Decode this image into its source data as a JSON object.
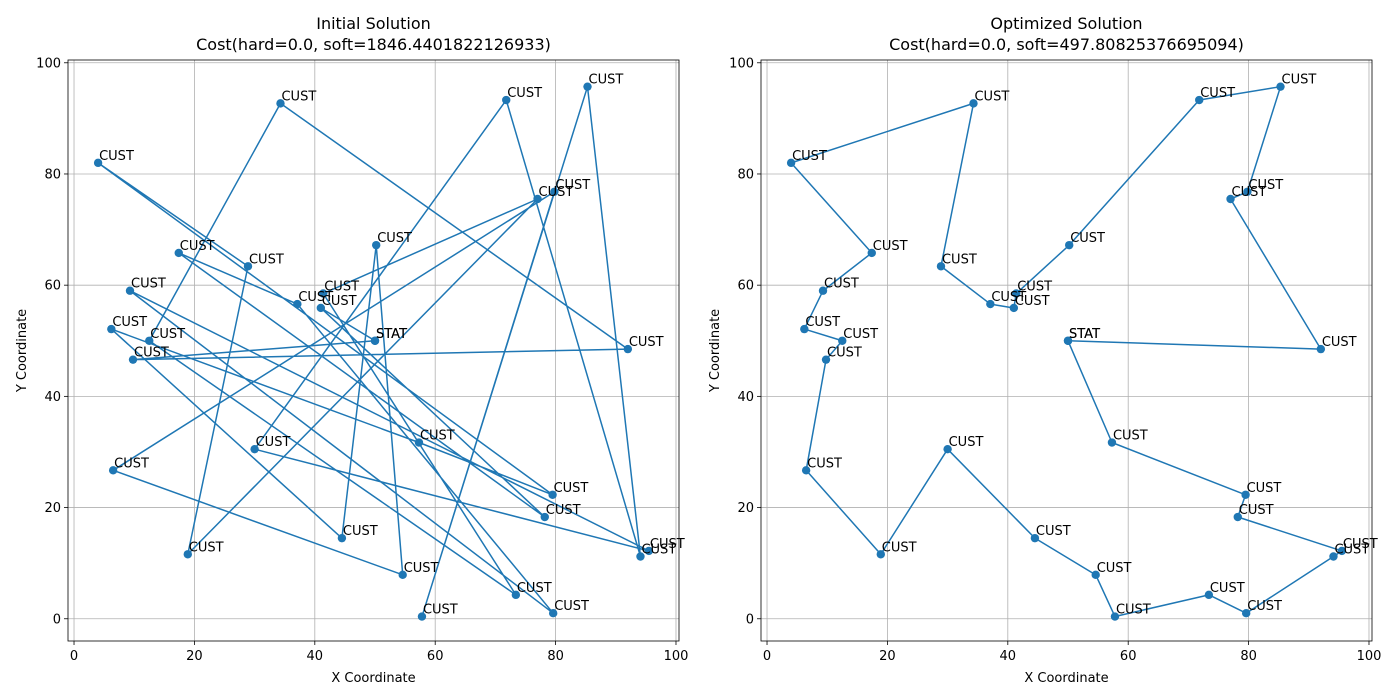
{
  "chart_data": [
    {
      "type": "line",
      "title": "Initial Solution",
      "subtitle": "Cost(hard=0.0, soft=1846.4401822126933)",
      "xlabel": "X Coordinate",
      "ylabel": "Y Coordinate",
      "xlim": [
        -1,
        100.5
      ],
      "ylim": [
        -4,
        100.5
      ],
      "xticks": [
        0,
        20,
        40,
        60,
        80,
        100
      ],
      "yticks": [
        0,
        20,
        40,
        60,
        80,
        100
      ],
      "grid": true,
      "color": "#1f77b4",
      "route": [
        [
          50,
          50
        ],
        [
          9.8,
          46.6
        ],
        [
          92,
          48.5
        ],
        [
          34.3,
          92.7
        ],
        [
          12.5,
          50
        ],
        [
          73.4,
          4.3
        ],
        [
          41.4,
          58.5
        ],
        [
          77,
          75.5
        ],
        [
          18.9,
          11.6
        ],
        [
          28.9,
          63.4
        ],
        [
          4,
          82
        ],
        [
          79.5,
          22.3
        ],
        [
          57.3,
          31.7
        ],
        [
          6.2,
          52.1
        ],
        [
          44.5,
          14.5
        ],
        [
          50.2,
          67.2
        ],
        [
          54.6,
          7.9
        ],
        [
          6.5,
          26.7
        ],
        [
          79.8,
          76.8
        ],
        [
          57.8,
          0.4
        ],
        [
          85.3,
          95.7
        ],
        [
          94.1,
          11.2
        ],
        [
          71.8,
          93.3
        ],
        [
          30,
          30.5
        ],
        [
          95.5,
          12.2
        ],
        [
          9.3,
          59
        ],
        [
          79.6,
          1
        ],
        [
          37.1,
          56.6
        ],
        [
          17.4,
          65.8
        ],
        [
          78.2,
          18.3
        ],
        [
          41,
          55.9
        ],
        [
          50,
          50
        ]
      ],
      "labels": [
        {
          "x": 50,
          "y": 50,
          "text": "STAT"
        },
        {
          "x": 9.8,
          "y": 46.6,
          "text": "CUST"
        },
        {
          "x": 92,
          "y": 48.5,
          "text": "CUST"
        },
        {
          "x": 34.3,
          "y": 92.7,
          "text": "CUST"
        },
        {
          "x": 12.5,
          "y": 50,
          "text": "CUST"
        },
        {
          "x": 73.4,
          "y": 4.3,
          "text": "CUST"
        },
        {
          "x": 41.4,
          "y": 58.5,
          "text": "CUST"
        },
        {
          "x": 77,
          "y": 75.5,
          "text": "CUST"
        },
        {
          "x": 18.9,
          "y": 11.6,
          "text": "CUST"
        },
        {
          "x": 28.9,
          "y": 63.4,
          "text": "CUST"
        },
        {
          "x": 4,
          "y": 82,
          "text": "CUST"
        },
        {
          "x": 79.5,
          "y": 22.3,
          "text": "CUST"
        },
        {
          "x": 57.3,
          "y": 31.7,
          "text": "CUST"
        },
        {
          "x": 6.2,
          "y": 52.1,
          "text": "CUST"
        },
        {
          "x": 44.5,
          "y": 14.5,
          "text": "CUST"
        },
        {
          "x": 50.2,
          "y": 67.2,
          "text": "CUST"
        },
        {
          "x": 54.6,
          "y": 7.9,
          "text": "CUST"
        },
        {
          "x": 6.5,
          "y": 26.7,
          "text": "CUST"
        },
        {
          "x": 79.8,
          "y": 76.8,
          "text": "CUST"
        },
        {
          "x": 57.8,
          "y": 0.4,
          "text": "CUST"
        },
        {
          "x": 85.3,
          "y": 95.7,
          "text": "CUST"
        },
        {
          "x": 94.1,
          "y": 11.2,
          "text": "CUST"
        },
        {
          "x": 71.8,
          "y": 93.3,
          "text": "CUST"
        },
        {
          "x": 30,
          "y": 30.5,
          "text": "CUST"
        },
        {
          "x": 95.5,
          "y": 12.2,
          "text": "CUST"
        },
        {
          "x": 9.3,
          "y": 59,
          "text": "CUST"
        },
        {
          "x": 79.6,
          "y": 1,
          "text": "CUST"
        },
        {
          "x": 37.1,
          "y": 56.6,
          "text": "CUST"
        },
        {
          "x": 17.4,
          "y": 65.8,
          "text": "CUST"
        },
        {
          "x": 78.2,
          "y": 18.3,
          "text": "CUST"
        },
        {
          "x": 41,
          "y": 55.9,
          "text": "CUST"
        },
        {
          "x": 50,
          "y": 50,
          "text": "STAT"
        }
      ]
    },
    {
      "type": "line",
      "title": "Optimized Solution",
      "subtitle": "Cost(hard=0.0, soft=497.80825376695094)",
      "xlabel": "X Coordinate",
      "ylabel": "Y Coordinate",
      "xlim": [
        -1,
        100.5
      ],
      "ylim": [
        -4,
        100.5
      ],
      "xticks": [
        0,
        20,
        40,
        60,
        80,
        100
      ],
      "yticks": [
        0,
        20,
        40,
        60,
        80,
        100
      ],
      "grid": true,
      "color": "#1f77b4",
      "route": [
        [
          50,
          50
        ],
        [
          92,
          48.5
        ],
        [
          77,
          75.5
        ],
        [
          79.8,
          76.8
        ],
        [
          85.3,
          95.7
        ],
        [
          71.8,
          93.3
        ],
        [
          50.2,
          67.2
        ],
        [
          41.4,
          58.5
        ],
        [
          41,
          55.9
        ],
        [
          37.1,
          56.6
        ],
        [
          28.9,
          63.4
        ],
        [
          34.3,
          92.7
        ],
        [
          4,
          82
        ],
        [
          17.4,
          65.8
        ],
        [
          9.3,
          59
        ],
        [
          6.2,
          52.1
        ],
        [
          12.5,
          50
        ],
        [
          9.8,
          46.6
        ],
        [
          6.5,
          26.7
        ],
        [
          18.9,
          11.6
        ],
        [
          30,
          30.5
        ],
        [
          44.5,
          14.5
        ],
        [
          54.6,
          7.9
        ],
        [
          57.8,
          0.4
        ],
        [
          73.4,
          4.3
        ],
        [
          79.6,
          1
        ],
        [
          94.1,
          11.2
        ],
        [
          95.5,
          12.2
        ],
        [
          78.2,
          18.3
        ],
        [
          79.5,
          22.3
        ],
        [
          57.3,
          31.7
        ],
        [
          50,
          50
        ]
      ],
      "labels": [
        {
          "x": 50,
          "y": 50,
          "text": "STAT"
        },
        {
          "x": 92,
          "y": 48.5,
          "text": "CUST"
        },
        {
          "x": 77,
          "y": 75.5,
          "text": "CUST"
        },
        {
          "x": 79.8,
          "y": 76.8,
          "text": "CUST"
        },
        {
          "x": 85.3,
          "y": 95.7,
          "text": "CUST"
        },
        {
          "x": 71.8,
          "y": 93.3,
          "text": "CUST"
        },
        {
          "x": 50.2,
          "y": 67.2,
          "text": "CUST"
        },
        {
          "x": 41.4,
          "y": 58.5,
          "text": "CUST"
        },
        {
          "x": 41,
          "y": 55.9,
          "text": "CUST"
        },
        {
          "x": 37.1,
          "y": 56.6,
          "text": "CUST"
        },
        {
          "x": 28.9,
          "y": 63.4,
          "text": "CUST"
        },
        {
          "x": 34.3,
          "y": 92.7,
          "text": "CUST"
        },
        {
          "x": 4,
          "y": 82,
          "text": "CUST"
        },
        {
          "x": 17.4,
          "y": 65.8,
          "text": "CUST"
        },
        {
          "x": 9.3,
          "y": 59,
          "text": "CUST"
        },
        {
          "x": 6.2,
          "y": 52.1,
          "text": "CUST"
        },
        {
          "x": 12.5,
          "y": 50,
          "text": "CUST"
        },
        {
          "x": 9.8,
          "y": 46.6,
          "text": "CUST"
        },
        {
          "x": 6.5,
          "y": 26.7,
          "text": "CUST"
        },
        {
          "x": 18.9,
          "y": 11.6,
          "text": "CUST"
        },
        {
          "x": 30,
          "y": 30.5,
          "text": "CUST"
        },
        {
          "x": 44.5,
          "y": 14.5,
          "text": "CUST"
        },
        {
          "x": 54.6,
          "y": 7.9,
          "text": "CUST"
        },
        {
          "x": 57.8,
          "y": 0.4,
          "text": "CUST"
        },
        {
          "x": 73.4,
          "y": 4.3,
          "text": "CUST"
        },
        {
          "x": 79.6,
          "y": 1,
          "text": "CUST"
        },
        {
          "x": 94.1,
          "y": 11.2,
          "text": "CUST"
        },
        {
          "x": 95.5,
          "y": 12.2,
          "text": "CUST"
        },
        {
          "x": 78.2,
          "y": 18.3,
          "text": "CUST"
        },
        {
          "x": 79.5,
          "y": 22.3,
          "text": "CUST"
        },
        {
          "x": 57.3,
          "y": 31.7,
          "text": "CUST"
        },
        {
          "x": 50,
          "y": 50,
          "text": "STAT"
        }
      ]
    }
  ]
}
